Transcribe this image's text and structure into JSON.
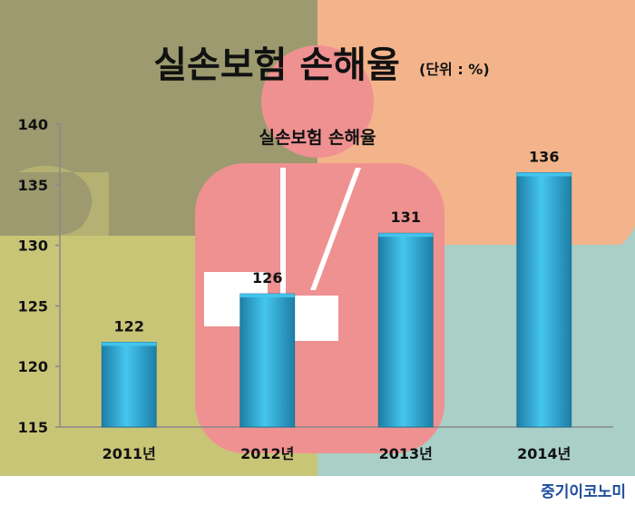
{
  "brand": "중기이코노미",
  "colors": {
    "bar_light": "#45c6ee",
    "bar_dark": "#1d7ea6",
    "axis": "#8a8a8a",
    "text": "#111111"
  },
  "chart_data": {
    "type": "bar",
    "title": "실손보험 손해율",
    "unit_label": "(단위 : %)",
    "inner_title": "실손보험 손해율",
    "categories": [
      "2011년",
      "2012년",
      "2013년",
      "2014년"
    ],
    "values": [
      122,
      126,
      131,
      136
    ],
    "data_labels": [
      "122",
      "126",
      "131",
      "136"
    ],
    "y_ticks": [
      "115",
      "120",
      "125",
      "130",
      "135",
      "140"
    ],
    "ylim": [
      115,
      140
    ],
    "grid": false,
    "legend": "none"
  }
}
